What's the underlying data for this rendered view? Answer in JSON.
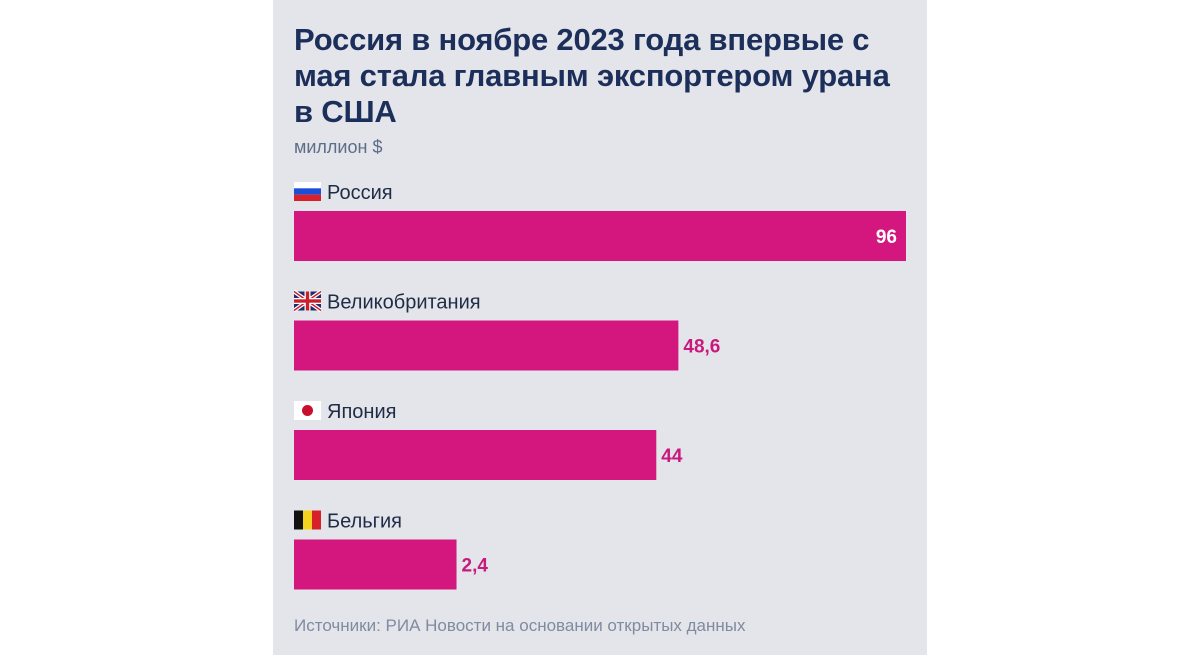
{
  "title": "Россия в ноябре 2023 года впервые с мая стала главным экспортером урана в США",
  "subtitle": "миллион $",
  "source": "Источники: РИА Новости на основании открытых данных",
  "colors": {
    "bar": "#d3177f",
    "title": "#1c2f5a",
    "label": "#1f2c46",
    "value_outside": "#c81a7c",
    "value_inside": "#ffffff"
  },
  "chart_data": {
    "type": "bar",
    "orientation": "horizontal",
    "categories": [
      "Россия",
      "Великобритания",
      "Япония",
      "Бельгия"
    ],
    "values": [
      96,
      48.6,
      44,
      2.4
    ],
    "value_labels": [
      "96",
      "48,6",
      "44",
      "2,4"
    ],
    "flags": [
      "russia-flag-icon",
      "uk-flag-icon",
      "japan-flag-icon",
      "belgium-flag-icon"
    ],
    "title": "Россия в ноябре 2023 года впервые с мая стала главным экспортером урана в США",
    "unit": "миллион $",
    "grid": false,
    "legend": "none"
  }
}
